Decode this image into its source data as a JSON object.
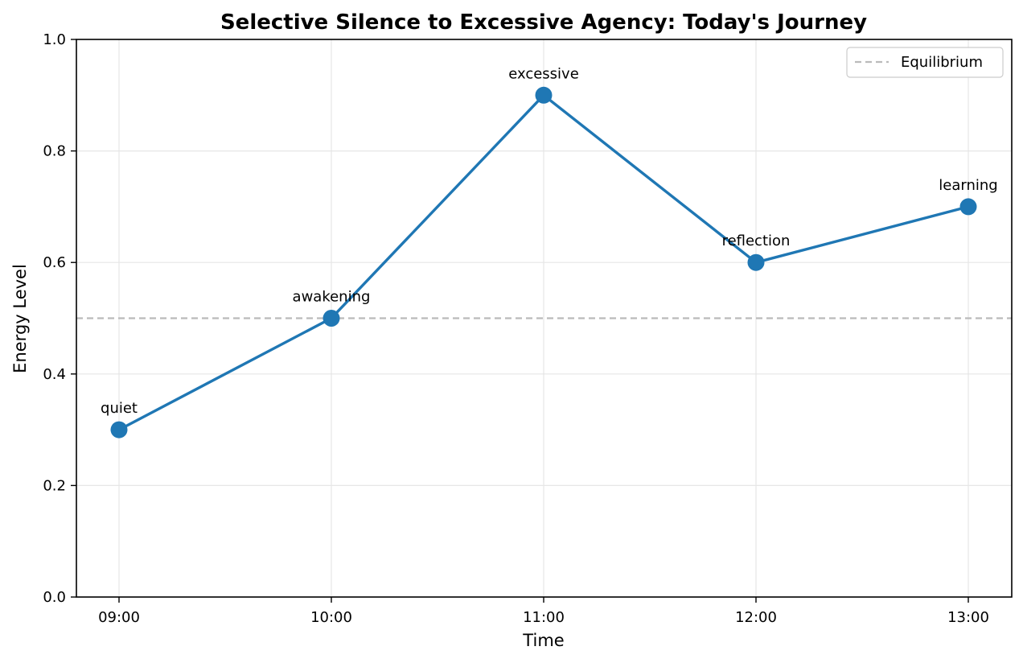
{
  "chart_data": {
    "type": "line",
    "title": "Selective Silence to Excessive Agency: Today's Journey",
    "xlabel": "Time",
    "ylabel": "Energy Level",
    "categories": [
      "09:00",
      "10:00",
      "11:00",
      "12:00",
      "13:00"
    ],
    "series": [
      {
        "values": [
          0.3,
          0.5,
          0.9,
          0.6,
          0.7
        ],
        "point_labels": [
          "quiet",
          "awakening",
          "excessive",
          "reflection",
          "learning"
        ],
        "color": "#1f77b4"
      }
    ],
    "reference_line": {
      "name": "Equilibrium",
      "y": 0.5,
      "color": "#bbbbbb",
      "style": "dashed"
    },
    "ylim": [
      0,
      1.0
    ],
    "yticks": [
      "0.0",
      "0.2",
      "0.4",
      "0.6",
      "0.8",
      "1.0"
    ],
    "grid": true,
    "legend": {
      "position": "top-right",
      "entries": [
        "Equilibrium"
      ]
    }
  }
}
